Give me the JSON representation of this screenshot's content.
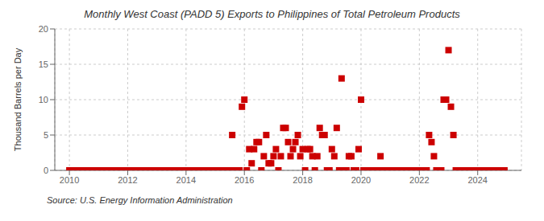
{
  "chart_data": {
    "type": "scatter",
    "title": "Monthly West Coast (PADD 5) Exports to Philippines of Total Petroleum Products",
    "ylabel": "Thousand Barrels per Day",
    "annotation": "Source: U.S. Energy Information Administration",
    "color": "#cc0000",
    "marker": "square",
    "grid": true,
    "xlim": [
      2009.5,
      2025.5
    ],
    "ylim": [
      0,
      20
    ],
    "xticks": [
      2010,
      2012,
      2014,
      2016,
      2018,
      2020,
      2022,
      2024
    ],
    "yticks": [
      0,
      5,
      10,
      15,
      20
    ],
    "x": [
      2010.0,
      2010.083,
      2010.167,
      2010.25,
      2010.333,
      2010.417,
      2010.5,
      2010.583,
      2010.667,
      2010.75,
      2010.833,
      2010.917,
      2011.0,
      2011.083,
      2011.167,
      2011.25,
      2011.333,
      2011.417,
      2011.5,
      2011.583,
      2011.667,
      2011.75,
      2011.833,
      2011.917,
      2012.0,
      2012.083,
      2012.167,
      2012.25,
      2012.333,
      2012.417,
      2012.5,
      2012.583,
      2012.667,
      2012.75,
      2012.833,
      2012.917,
      2013.0,
      2013.083,
      2013.167,
      2013.25,
      2013.333,
      2013.417,
      2013.5,
      2013.583,
      2013.667,
      2013.75,
      2013.833,
      2013.917,
      2014.0,
      2014.083,
      2014.167,
      2014.25,
      2014.333,
      2014.417,
      2014.5,
      2014.583,
      2014.667,
      2014.75,
      2014.833,
      2014.917,
      2015.0,
      2015.083,
      2015.167,
      2015.25,
      2015.333,
      2015.417,
      2015.5,
      2015.583,
      2015.667,
      2015.75,
      2015.833,
      2015.917,
      2016.0,
      2016.083,
      2016.167,
      2016.25,
      2016.333,
      2016.417,
      2016.5,
      2016.583,
      2016.667,
      2016.75,
      2016.833,
      2016.917,
      2017.0,
      2017.083,
      2017.167,
      2017.25,
      2017.333,
      2017.417,
      2017.5,
      2017.583,
      2017.667,
      2017.75,
      2017.833,
      2017.917,
      2018.0,
      2018.083,
      2018.167,
      2018.25,
      2018.333,
      2018.417,
      2018.5,
      2018.583,
      2018.667,
      2018.75,
      2018.833,
      2018.917,
      2019.0,
      2019.083,
      2019.167,
      2019.25,
      2019.333,
      2019.417,
      2019.5,
      2019.583,
      2019.667,
      2019.75,
      2019.833,
      2019.917,
      2020.0,
      2020.083,
      2020.167,
      2020.25,
      2020.333,
      2020.417,
      2020.5,
      2020.583,
      2020.667,
      2020.75,
      2020.833,
      2020.917,
      2021.0,
      2021.083,
      2021.167,
      2021.25,
      2021.333,
      2021.417,
      2021.5,
      2021.583,
      2021.667,
      2021.75,
      2021.833,
      2021.917,
      2022.0,
      2022.083,
      2022.167,
      2022.25,
      2022.333,
      2022.417,
      2022.5,
      2022.583,
      2022.667,
      2022.75,
      2022.833,
      2022.917,
      2023.0,
      2023.083,
      2023.167,
      2023.25,
      2023.333,
      2023.417,
      2023.5,
      2023.583,
      2023.667,
      2023.75,
      2023.833,
      2023.917,
      2024.0,
      2024.083,
      2024.167,
      2024.25,
      2024.333,
      2024.417,
      2024.5,
      2024.583,
      2024.667,
      2024.75,
      2024.833,
      2024.917
    ],
    "values": [
      0,
      0,
      0,
      0,
      0,
      0,
      0,
      0,
      0,
      0,
      0,
      0,
      0,
      0,
      0,
      0,
      0,
      0,
      0,
      0,
      0,
      0,
      0,
      0,
      0,
      0,
      0,
      0,
      0,
      0,
      0,
      0,
      0,
      0,
      0,
      0,
      0,
      0,
      0,
      0,
      0,
      0,
      0,
      0,
      0,
      0,
      0,
      0,
      0,
      0,
      0,
      0,
      0,
      0,
      0,
      0,
      0,
      0,
      0,
      0,
      0,
      0,
      0,
      0,
      0,
      0,
      0,
      5,
      0,
      0,
      0,
      9,
      10,
      0,
      3,
      1,
      3,
      4,
      4,
      0,
      2,
      5,
      1,
      1,
      2,
      3,
      0,
      2,
      6,
      6,
      4,
      2,
      3,
      4,
      5,
      2,
      3,
      0,
      3,
      3,
      2,
      0,
      2,
      6,
      5,
      5,
      0,
      0,
      3,
      2,
      6,
      0,
      13,
      0,
      0,
      2,
      2,
      0,
      0,
      3,
      10,
      0,
      0,
      0,
      0,
      0,
      0,
      0,
      2,
      0,
      0,
      0,
      0,
      0,
      0,
      0,
      0,
      0,
      0,
      0,
      0,
      0,
      0,
      0,
      0,
      0,
      0,
      0,
      5,
      4,
      2,
      0,
      0,
      0,
      10,
      10,
      17,
      9,
      5,
      0,
      0,
      0,
      0,
      0,
      0,
      0,
      0,
      0,
      0,
      0,
      0,
      0,
      0,
      0,
      0,
      0,
      0,
      0,
      0,
      0
    ]
  }
}
